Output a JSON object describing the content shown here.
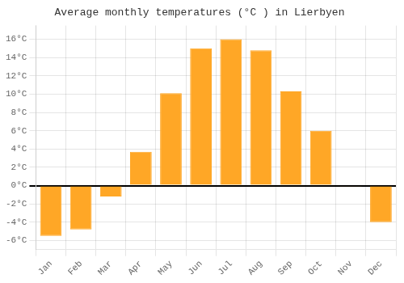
{
  "chart_data": {
    "type": "bar",
    "title": "Average monthly temperatures (°C ) in Lierbyen",
    "categories": [
      "Jan",
      "Feb",
      "Mar",
      "Apr",
      "May",
      "Jun",
      "Jul",
      "Aug",
      "Sep",
      "Oct",
      "Nov",
      "Dec"
    ],
    "values": [
      -5.5,
      -4.8,
      -1.2,
      3.7,
      10.1,
      15.0,
      16.0,
      14.8,
      10.3,
      6.0,
      -0.1,
      -4.0
    ],
    "color": "#FFA726",
    "ylim": [
      -7,
      17.5
    ],
    "yticks": [
      {
        "value": -6,
        "label": "-6°C"
      },
      {
        "value": -4,
        "label": "-4°C"
      },
      {
        "value": -2,
        "label": "-2°C"
      },
      {
        "value": 0,
        "label": "0°C"
      },
      {
        "value": 2,
        "label": "2°C"
      },
      {
        "value": 4,
        "label": "4°C"
      },
      {
        "value": 6,
        "label": "6°C"
      },
      {
        "value": 8,
        "label": "8°C"
      },
      {
        "value": 10,
        "label": "10°C"
      },
      {
        "value": 12,
        "label": "12°C"
      },
      {
        "value": 14,
        "label": "14°C"
      },
      {
        "value": 16,
        "label": "16°C"
      }
    ],
    "grid": true
  }
}
